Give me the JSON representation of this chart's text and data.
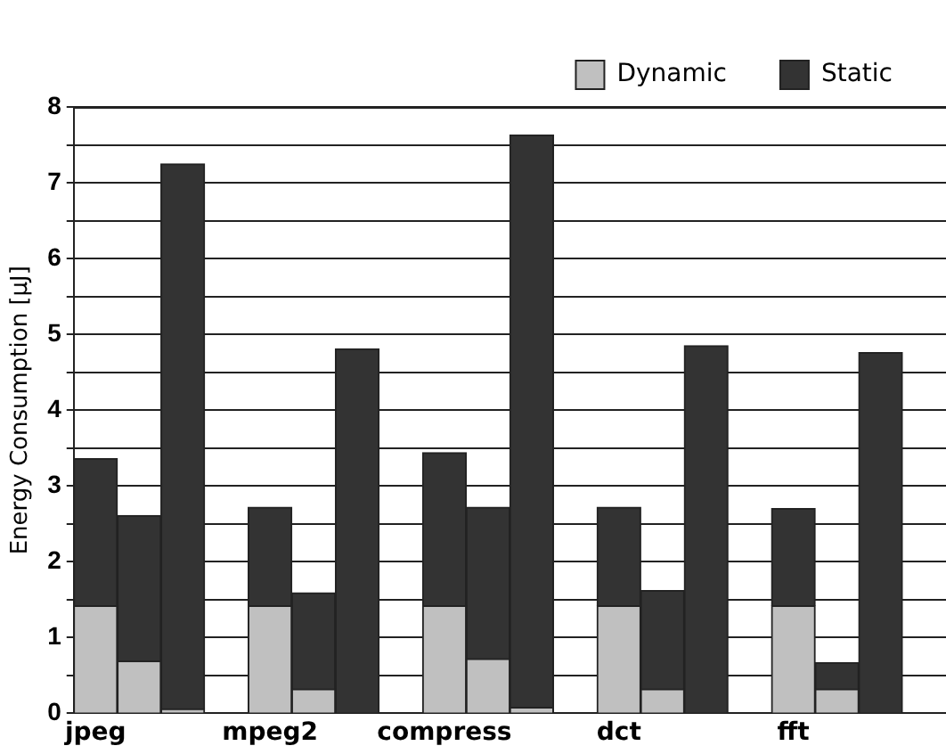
{
  "chart_data": {
    "type": "bar",
    "ylabel": "Energy Consumption [μJ]",
    "stacked": true,
    "grid": "y",
    "legend": "top right",
    "categories": [
      "jpeg",
      null,
      null,
      null,
      "mpeg2",
      null,
      null,
      null,
      "compress",
      null,
      null,
      null,
      "dct",
      null,
      null,
      null,
      "fft",
      null,
      null,
      null
    ],
    "series": [
      {
        "name": "Dynamic",
        "color": "#c0c0c0",
        "values": [
          1.42,
          0.69,
          0.06,
          null,
          1.42,
          0.32,
          0,
          null,
          1.42,
          0.72,
          0.08,
          null,
          1.42,
          0.32,
          0,
          null,
          1.42,
          0.32,
          0,
          null
        ]
      },
      {
        "name": "Static",
        "color": "#333333",
        "values": [
          1.94,
          1.92,
          7.19,
          null,
          1.3,
          1.27,
          4.81,
          null,
          2.02,
          2.0,
          7.55,
          null,
          1.3,
          1.3,
          4.85,
          null,
          1.28,
          0.35,
          4.76,
          null
        ]
      }
    ],
    "ylim": [
      0,
      8
    ],
    "yticks": [
      0,
      {
        "value": 0.5,
        "label": null
      },
      1,
      {
        "value": 1.5,
        "label": null
      },
      2,
      {
        "value": 2.5,
        "label": null
      },
      3,
      {
        "value": 3.5,
        "label": null
      },
      4,
      {
        "value": 4.5,
        "label": null
      },
      5,
      {
        "value": 5.5,
        "label": null
      },
      6,
      {
        "value": 6.5,
        "label": null
      },
      7,
      {
        "value": 7.5,
        "label": null
      },
      8
    ]
  }
}
